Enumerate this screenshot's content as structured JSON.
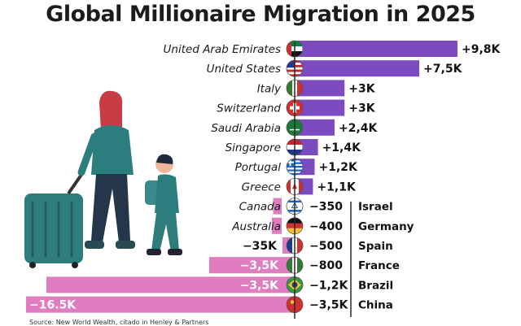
{
  "title": "Global Millionaire Migration in 2025",
  "colors": {
    "positive": "#7b4bbf",
    "negative": "#e07cc0",
    "divider": "#2a2a2a"
  },
  "chart_data": {
    "type": "bar",
    "title": "Global Millionaire Migration in 2025",
    "rows": [
      {
        "country": "United Arab Emirates",
        "value": 9800,
        "label": "+9,8K",
        "flag": "uae-flag"
      },
      {
        "country": "United States",
        "value": 7500,
        "label": "+7,5K",
        "flag": "usa-flag"
      },
      {
        "country": "Italy",
        "value": 3000,
        "label": "+3K",
        "flag": "italy-flag"
      },
      {
        "country": "Switzerland",
        "value": 3000,
        "label": "+3K",
        "flag": "switzerland-flag"
      },
      {
        "country": "Saudi Arabia",
        "value": 2400,
        "label": "+2,4K",
        "flag": "saudi-flag"
      },
      {
        "country": "Singapore",
        "value": 1400,
        "label": "+1,4K",
        "flag": "netherlands-flag"
      },
      {
        "country": "Portugal",
        "value": 1200,
        "label": "+1,2K",
        "flag": "greece-flag"
      },
      {
        "country": "Greece",
        "value": 1100,
        "label": "+1,1K",
        "flag": "canada-flag"
      },
      {
        "country": "Canada",
        "value": -350,
        "label": "−350",
        "right": "Israel",
        "flag": "israel-flag"
      },
      {
        "country": "Australia",
        "value": -400,
        "label": "−400",
        "right": "Germany",
        "flag": "germany-flag"
      },
      {
        "country": "−35K",
        "value": -500,
        "label": "−500",
        "right": "Spain",
        "flag": "france-flag"
      },
      {
        "country": "−3,5K",
        "value": -800,
        "label": "−800",
        "right": "France",
        "flag": "nigeria-flag"
      },
      {
        "country": "−3,5K",
        "value": -1200,
        "label": "−1,2K",
        "right": "Brazil",
        "flag": "brazil-flag"
      },
      {
        "country": "−16.5K",
        "value": -3500,
        "label": "−3,5K",
        "right": "China",
        "flag": "china-flag"
      }
    ]
  },
  "source": "Source: New World Wealth, citado in Henley & Partners"
}
